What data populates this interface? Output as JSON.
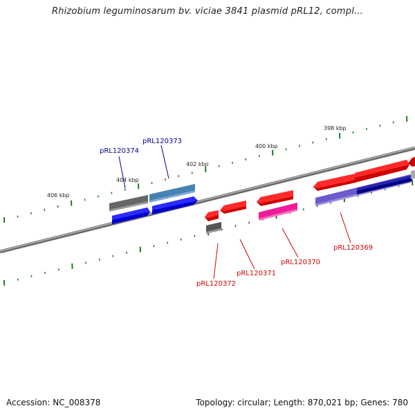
{
  "title": "Rhizobium leguminosarum bv. viciae 3841 plasmid pRL12, compl...",
  "footer": {
    "accession": "Accession: NC_008378",
    "summary": "Topology: circular; Length: 870,021 bp; Genes: 780"
  },
  "scale_labels": [
    "406 kbp",
    "404 kbp",
    "402 kbp",
    "400 kbp",
    "398 kbp"
  ],
  "gene_labels": {
    "pRL120374": "pRL120374",
    "pRL120373": "pRL120373",
    "pRL120372": "pRL120372",
    "pRL120371": "pRL120371",
    "pRL120370": "pRL120370",
    "pRL120369": "pRL120369"
  },
  "colors": {
    "backbone": "#8a8a8a",
    "tick": "#1e7a1e",
    "gene_red": "#ff0000",
    "gene_blue": "#0000ee",
    "gene_gray": "#666666",
    "gene_steel": "#4682b4",
    "gene_pink": "#ee1c9a",
    "gene_slate": "#6a5acd",
    "gene_navy": "#000080",
    "label_blue": "#00008b",
    "label_red": "#cc0000"
  }
}
